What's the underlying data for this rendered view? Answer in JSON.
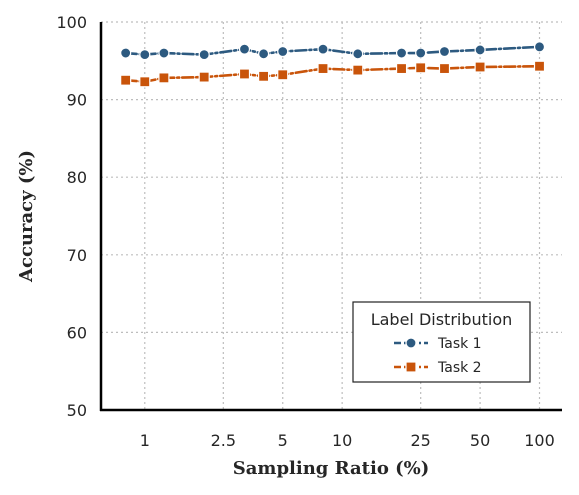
{
  "chart_data": {
    "type": "line",
    "xlabel": "Sampling Ratio (%)",
    "ylabel": "Accuracy (%)",
    "x_scale": "log",
    "x_ticks": [
      1,
      2.5,
      5,
      10,
      25,
      50,
      100
    ],
    "x_tick_labels": [
      "1",
      "2.5",
      "5",
      "10",
      "25",
      "50",
      "100"
    ],
    "xlim": [
      0.6,
      130
    ],
    "ylim": [
      50,
      100
    ],
    "y_ticks": [
      50,
      60,
      70,
      80,
      90,
      100
    ],
    "y_tick_labels": [
      "50",
      "60",
      "70",
      "80",
      "90",
      "100"
    ],
    "grid": true,
    "legend": {
      "title": "Label Distribution",
      "position": "lower-right"
    },
    "series": [
      {
        "name": "Task 1",
        "color": "#2d5a80",
        "marker": "circle",
        "line_style": "dash-dot",
        "x": [
          0.8,
          1,
          1.25,
          2,
          3.2,
          4,
          5,
          8,
          12,
          20,
          25,
          33,
          50,
          100
        ],
        "y": [
          96.0,
          95.8,
          96.0,
          95.8,
          96.5,
          95.9,
          96.2,
          96.5,
          95.9,
          96.0,
          96.0,
          96.2,
          96.4,
          96.8
        ]
      },
      {
        "name": "Task 2",
        "color": "#c9540a",
        "marker": "square",
        "line_style": "dash-dot",
        "x": [
          0.8,
          1,
          1.25,
          2,
          3.2,
          4,
          5,
          8,
          12,
          20,
          25,
          33,
          50,
          100
        ],
        "y": [
          92.5,
          92.3,
          92.8,
          92.9,
          93.3,
          93.0,
          93.2,
          94.0,
          93.8,
          94.0,
          94.1,
          94.0,
          94.2,
          94.3
        ]
      }
    ]
  }
}
